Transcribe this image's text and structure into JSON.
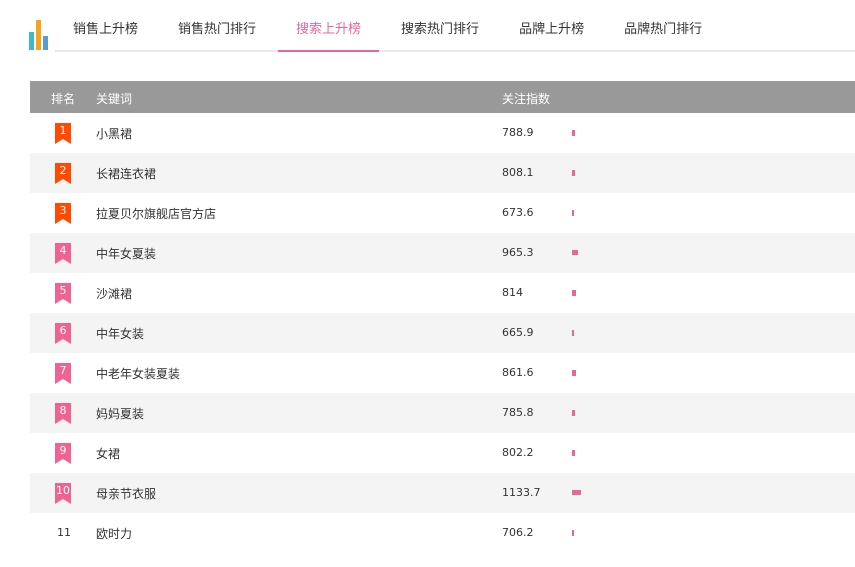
{
  "colors": {
    "accent": "#e8679a",
    "top3": "#ff4a00",
    "badge": "#f06292",
    "header": "#999999"
  },
  "tabs": [
    "销售上升榜",
    "销售热门排行",
    "搜索上升榜",
    "搜索热门排行",
    "品牌上升榜",
    "品牌热门排行"
  ],
  "active_tab": 2,
  "table": {
    "headers": {
      "rank": "排名",
      "keyword": "关键词",
      "index": "关注指数"
    },
    "rows": [
      {
        "rank": "1",
        "keyword": "小黑裙",
        "value": "788.9"
      },
      {
        "rank": "2",
        "keyword": "长裙连衣裙",
        "value": "808.1"
      },
      {
        "rank": "3",
        "keyword": "拉夏贝尔旗舰店官方店",
        "value": "673.6"
      },
      {
        "rank": "4",
        "keyword": "中年女夏装",
        "value": "965.3"
      },
      {
        "rank": "5",
        "keyword": "沙滩裙",
        "value": "814"
      },
      {
        "rank": "6",
        "keyword": "中年女装",
        "value": "665.9"
      },
      {
        "rank": "7",
        "keyword": "中老年女装夏装",
        "value": "861.6"
      },
      {
        "rank": "8",
        "keyword": "妈妈夏装",
        "value": "785.8"
      },
      {
        "rank": "9",
        "keyword": "女裙",
        "value": "802.2"
      },
      {
        "rank": "10",
        "keyword": "母亲节衣服",
        "value": "1133.7"
      },
      {
        "rank": "11",
        "keyword": "欧时力",
        "value": "706.2"
      }
    ]
  }
}
